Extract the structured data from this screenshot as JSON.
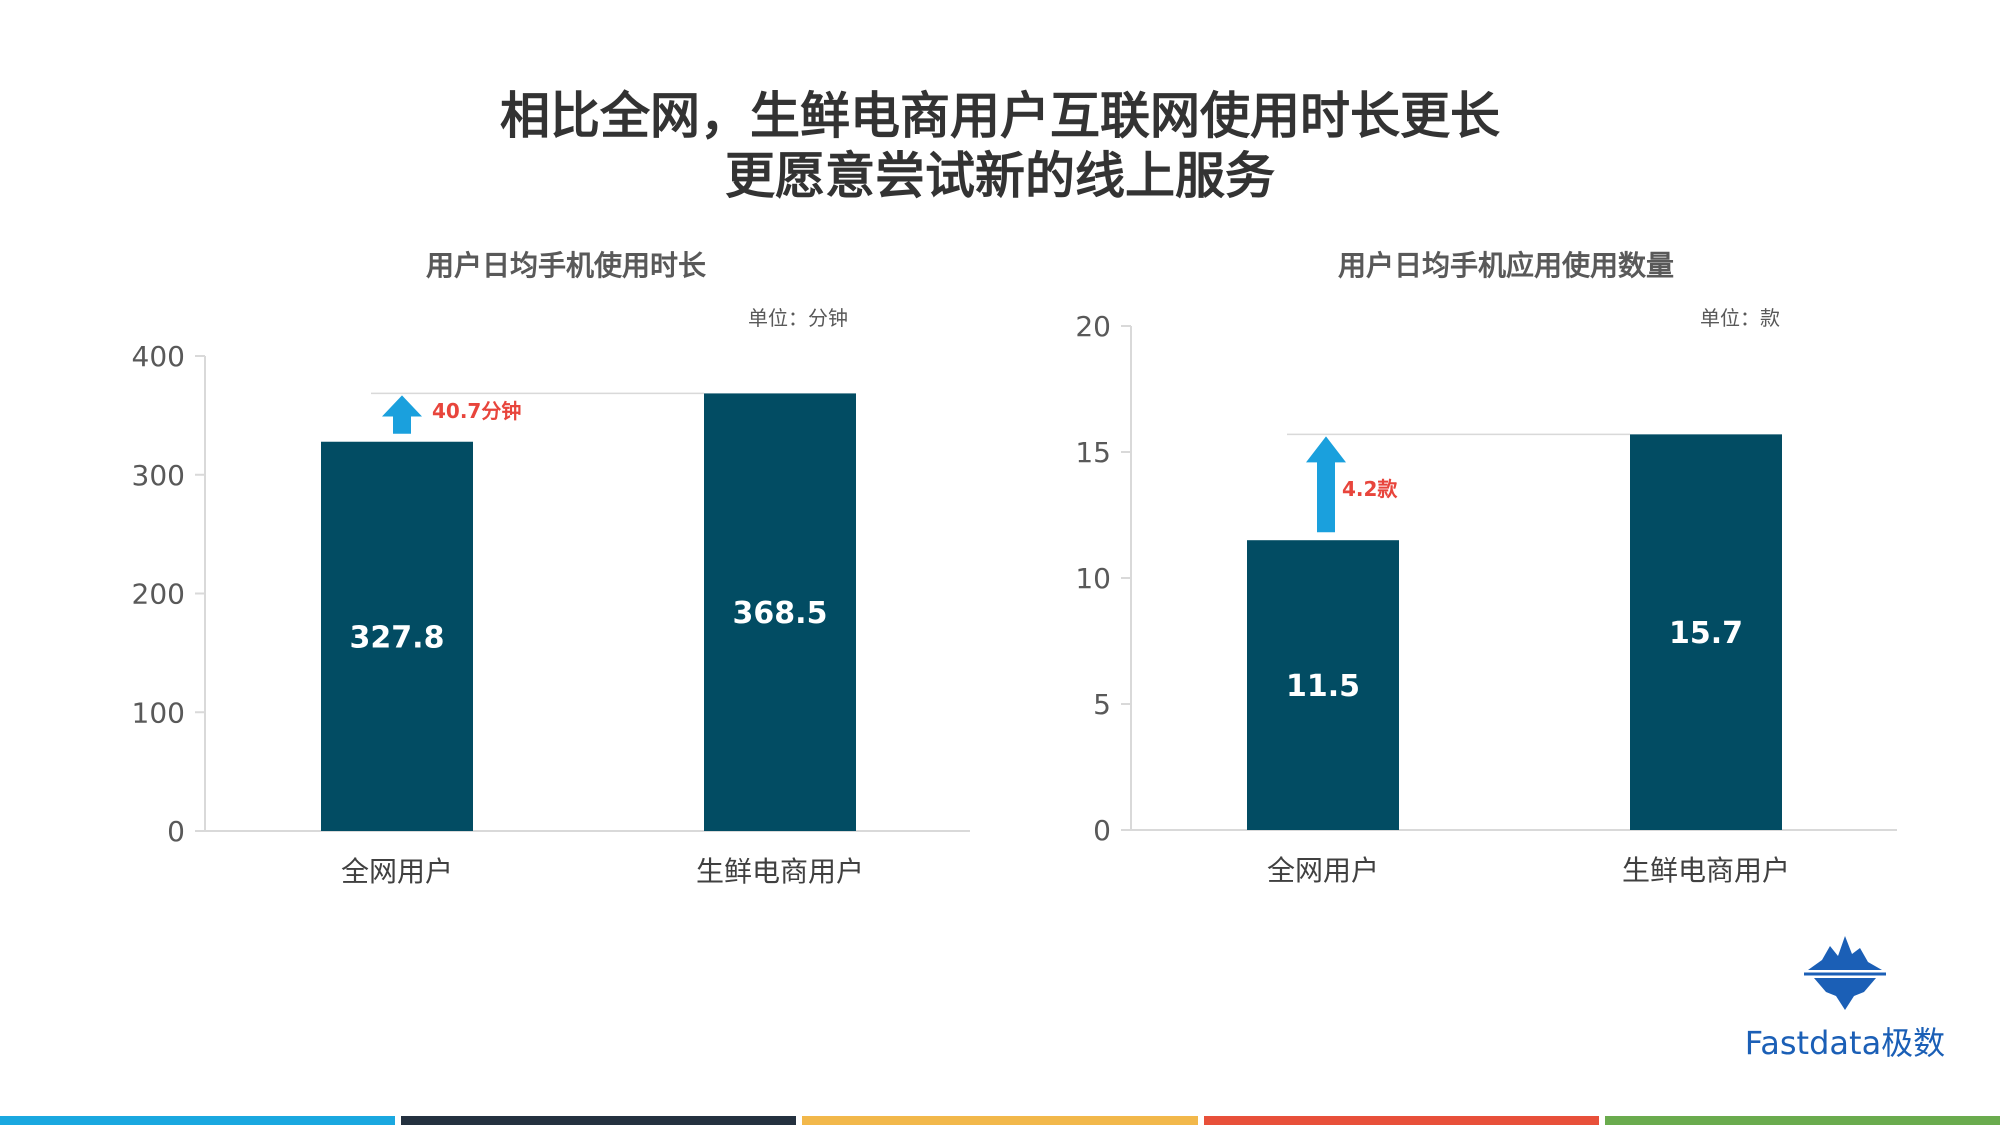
{
  "title": {
    "line1": "相比全网，生鲜电商用户互联网使用时长更长",
    "line2": "更愿意尝试新的线上服务"
  },
  "chart_data": [
    {
      "type": "bar",
      "title": "用户日均手机使用时长",
      "unit": "单位：分钟",
      "categories": [
        "全网用户",
        "生鲜电商用户"
      ],
      "values": [
        327.8,
        368.5
      ],
      "value_labels": [
        "327.8",
        "368.5"
      ],
      "ylim": [
        0,
        400
      ],
      "yticks": [
        0,
        100,
        200,
        300,
        400
      ],
      "annotation": "40.7分钟",
      "bar_color": "#024c63"
    },
    {
      "type": "bar",
      "title": "用户日均手机应用使用数量",
      "unit": "单位：款",
      "categories": [
        "全网用户",
        "生鲜电商用户"
      ],
      "values": [
        11.5,
        15.7
      ],
      "value_labels": [
        "11.5",
        "15.7"
      ],
      "ylim": [
        0,
        20
      ],
      "yticks": [
        0,
        5,
        10,
        15,
        20
      ],
      "annotation": "4.2款",
      "bar_color": "#024c63"
    }
  ],
  "colors": {
    "arrow": "#1aa0dd",
    "annotation": "#e8453c",
    "bottom_bars": [
      "#1aa8e0",
      "#24313f",
      "#f2b84b",
      "#e8503a",
      "#6aab4e"
    ]
  },
  "logo": {
    "icon": "iceberg-icon",
    "text": "Fastdata极数"
  }
}
